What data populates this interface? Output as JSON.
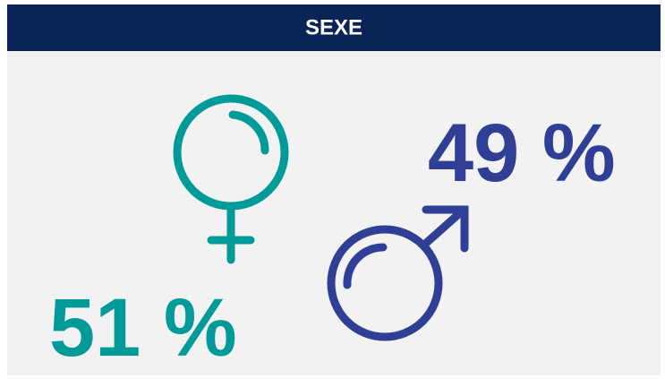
{
  "header": {
    "title": "SEXE"
  },
  "female": {
    "label": "51 %"
  },
  "male": {
    "label": "49 %"
  }
}
